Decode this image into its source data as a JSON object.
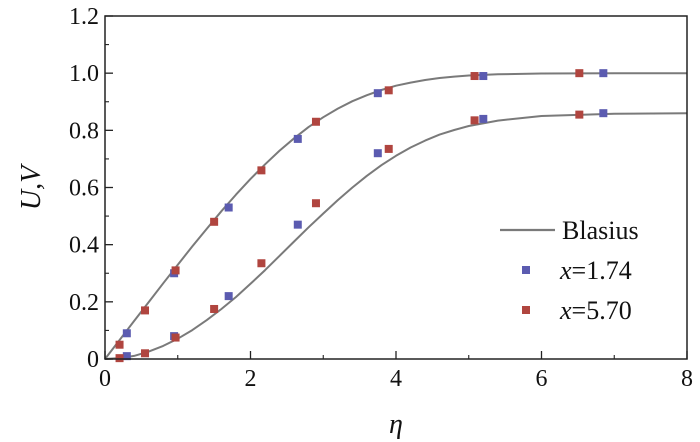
{
  "chart_data": {
    "type": "line",
    "xlabel": "η",
    "ylabel": "U,V",
    "xlim": [
      0,
      8
    ],
    "ylim": [
      0,
      1.2
    ],
    "x_ticks": [
      "0",
      "2",
      "4",
      "6",
      "8"
    ],
    "y_ticks": [
      "0",
      "0.2",
      "0.4",
      "0.6",
      "0.8",
      "1.0",
      "1.2"
    ],
    "grid": false,
    "legend_position": "right-center",
    "colors": {
      "blasius": "#7a7a7a",
      "x174": "#5b5bb0",
      "x570": "#b0453f"
    },
    "series": [
      {
        "name": "Blasius",
        "kind": "line",
        "curves": [
          {
            "component": "U",
            "x": [
              0,
              0.2,
              0.4,
              0.6,
              0.8,
              1.0,
              1.2,
              1.4,
              1.6,
              1.8,
              2.0,
              2.2,
              2.4,
              2.6,
              2.8,
              3.0,
              3.2,
              3.4,
              3.6,
              3.8,
              4.0,
              4.2,
              4.4,
              4.6,
              4.8,
              5.0,
              5.4,
              6.0,
              7.0,
              8.0
            ],
            "y": [
              0,
              0.066,
              0.133,
              0.199,
              0.265,
              0.33,
              0.394,
              0.456,
              0.517,
              0.575,
              0.63,
              0.681,
              0.729,
              0.772,
              0.812,
              0.846,
              0.876,
              0.902,
              0.923,
              0.941,
              0.956,
              0.967,
              0.976,
              0.983,
              0.988,
              0.992,
              0.996,
              0.999,
              1.0,
              1.0
            ]
          },
          {
            "component": "V",
            "x": [
              0,
              0.2,
              0.4,
              0.6,
              0.8,
              1.0,
              1.2,
              1.4,
              1.6,
              1.8,
              2.0,
              2.2,
              2.4,
              2.6,
              2.8,
              3.0,
              3.2,
              3.4,
              3.6,
              3.8,
              4.0,
              4.2,
              4.4,
              4.6,
              4.8,
              5.0,
              5.4,
              6.0,
              7.0,
              8.0
            ],
            "y": [
              0,
              0.003,
              0.011,
              0.026,
              0.046,
              0.071,
              0.101,
              0.136,
              0.175,
              0.217,
              0.263,
              0.311,
              0.361,
              0.411,
              0.461,
              0.509,
              0.556,
              0.6,
              0.641,
              0.678,
              0.711,
              0.74,
              0.764,
              0.785,
              0.801,
              0.815,
              0.834,
              0.85,
              0.858,
              0.86
            ]
          }
        ]
      },
      {
        "name": "x=1.74",
        "kind": "scatter",
        "x": [
          0.3,
          0.95,
          1.7,
          2.65,
          3.75,
          5.2,
          6.85,
          0.3,
          0.95,
          1.7,
          2.65,
          3.75,
          5.2,
          6.85
        ],
        "y": [
          0.09,
          0.3,
          0.53,
          0.77,
          0.93,
          0.99,
          1.0,
          0.01,
          0.08,
          0.22,
          0.47,
          0.72,
          0.84,
          0.86
        ]
      },
      {
        "name": "x=5.70",
        "kind": "scatter",
        "x": [
          0.2,
          0.55,
          0.97,
          1.5,
          2.15,
          2.9,
          3.9,
          5.08,
          6.52,
          0.2,
          0.55,
          0.97,
          1.5,
          2.15,
          2.9,
          3.9,
          5.08,
          6.52
        ],
        "y": [
          0.05,
          0.17,
          0.31,
          0.48,
          0.66,
          0.83,
          0.94,
          0.99,
          1.0,
          0.003,
          0.02,
          0.075,
          0.175,
          0.335,
          0.545,
          0.735,
          0.835,
          0.855
        ]
      }
    ],
    "legend": {
      "blasius": "Blasius",
      "x174_var": "x",
      "x174_val": "=1.74",
      "x570_var": "x",
      "x570_val": "=5.70"
    }
  }
}
